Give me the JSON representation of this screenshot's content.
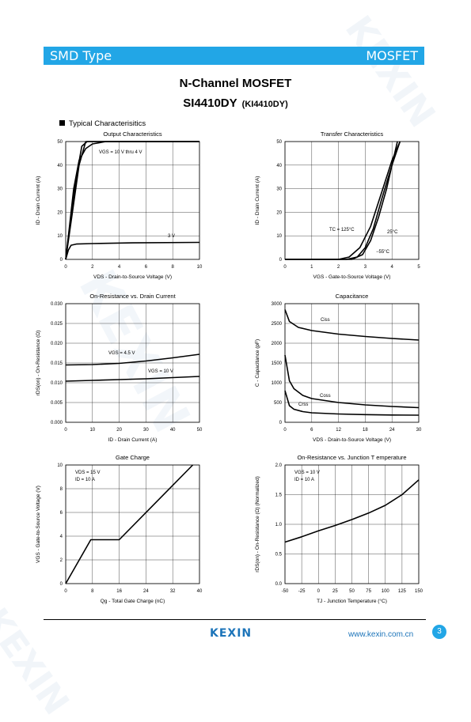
{
  "header": {
    "left": "SMD Type",
    "right": "MOSFET"
  },
  "title": {
    "line1": "N-Channel MOSFET",
    "part": "SI4410DY",
    "alt": "(KI4410DY)"
  },
  "section_label": "Typical  Characterisitics",
  "watermark": "KEXIN",
  "footer": {
    "logo": "KEXIN",
    "url": "www.kexin.com.cn",
    "page": "3"
  },
  "chart_data": [
    {
      "type": "line",
      "title": "Output  Characteristics",
      "xlabel": "VDS  -  Drain-to-Source Voltage (V)",
      "ylabel": "ID  -  Drain Current (A)",
      "xlim": [
        0,
        10
      ],
      "ylim": [
        0,
        50
      ],
      "xticks": [
        0,
        2,
        4,
        6,
        8,
        10
      ],
      "yticks": [
        0,
        10,
        20,
        30,
        40,
        50
      ],
      "series": [
        {
          "name": "VGS = 10 V thru 4 V",
          "x": [
            0,
            0.3,
            0.6,
            1.0,
            1.5,
            2.0,
            3.0,
            10
          ],
          "y": [
            0,
            15,
            30,
            42,
            47,
            49,
            50,
            50
          ]
        },
        {
          "x": [
            0,
            0.5,
            1.0,
            1.5,
            2.0,
            2.5,
            3.0,
            10
          ],
          "y": [
            0,
            20,
            40,
            50,
            50,
            50,
            50,
            50
          ]
        },
        {
          "x": [
            0,
            0.4,
            0.8,
            1.2,
            1.6,
            10
          ],
          "y": [
            0,
            18,
            35,
            48,
            50,
            50
          ]
        },
        {
          "name": "3 V",
          "x": [
            0,
            0.2,
            0.4,
            0.8,
            2,
            5,
            10
          ],
          "y": [
            0,
            4,
            6,
            6.5,
            6.7,
            7,
            7.2
          ]
        }
      ],
      "annotations": [
        "VGS = 10 V thru 4 V",
        "3 V"
      ]
    },
    {
      "type": "line",
      "title": "Transfer Characteristics",
      "xlabel": "VGS  -  Gate-to-Source Voltage (V)",
      "ylabel": "ID  -  Drain Current (A)",
      "xlim": [
        0,
        5
      ],
      "ylim": [
        0,
        50
      ],
      "xticks": [
        0,
        1,
        2,
        3,
        4,
        5
      ],
      "yticks": [
        0,
        10,
        20,
        30,
        40,
        50
      ],
      "series": [
        {
          "name": "TC = 125°C",
          "x": [
            0,
            2.0,
            2.4,
            2.8,
            3.2,
            3.6,
            4.0,
            4.3
          ],
          "y": [
            0,
            0,
            1,
            5,
            14,
            28,
            42,
            50
          ]
        },
        {
          "name": "25°C",
          "x": [
            0,
            2.3,
            2.7,
            3.0,
            3.3,
            3.6,
            4.0,
            4.3
          ],
          "y": [
            0,
            0,
            1,
            5,
            13,
            25,
            40,
            50
          ]
        },
        {
          "name": "−55°C",
          "x": [
            0,
            2.5,
            2.9,
            3.2,
            3.5,
            3.8,
            4.1,
            4.2
          ],
          "y": [
            0,
            0,
            2,
            8,
            18,
            30,
            45,
            50
          ]
        }
      ]
    },
    {
      "type": "line",
      "title": "On-Resistance vs. Drain Current",
      "xlabel": "ID  -  Drain Current (A)",
      "ylabel": "rDS(on) - On-Resistance (Ω)",
      "xlim": [
        0,
        50
      ],
      "ylim": [
        0,
        0.03
      ],
      "xticks": [
        0,
        10,
        20,
        30,
        40,
        50
      ],
      "yticks": [
        "0.000",
        "0.005",
        "0.010",
        "0.015",
        "0.020",
        "0.025",
        "0.030"
      ],
      "series": [
        {
          "name": "VGS = 4.5 V",
          "x": [
            0,
            10,
            20,
            30,
            40,
            50
          ],
          "y": [
            0.0145,
            0.0146,
            0.0149,
            0.0155,
            0.0163,
            0.0172
          ]
        },
        {
          "name": "VGS = 10 V",
          "x": [
            0,
            10,
            20,
            30,
            40,
            50
          ],
          "y": [
            0.0104,
            0.0106,
            0.0108,
            0.011,
            0.0113,
            0.0116
          ]
        }
      ]
    },
    {
      "type": "line",
      "title": "Capacitance",
      "xlabel": "VDS  -  Drain-to-Source Voltage (V)",
      "ylabel": "C  -  Capacitance (pF)",
      "xlim": [
        0,
        30
      ],
      "ylim": [
        0,
        3000
      ],
      "xticks": [
        0,
        6,
        12,
        18,
        24,
        30
      ],
      "yticks": [
        0,
        500,
        1000,
        1500,
        2000,
        2500,
        3000
      ],
      "series": [
        {
          "name": "Ciss",
          "x": [
            0,
            1,
            3,
            6,
            12,
            18,
            24,
            30
          ],
          "y": [
            2850,
            2550,
            2400,
            2320,
            2230,
            2170,
            2120,
            2080
          ]
        },
        {
          "name": "Coss",
          "x": [
            0,
            1,
            2,
            4,
            6,
            12,
            18,
            24,
            30
          ],
          "y": [
            1700,
            1050,
            850,
            680,
            600,
            500,
            440,
            400,
            370
          ]
        },
        {
          "name": "Crss",
          "x": [
            0,
            1,
            2,
            4,
            6,
            12,
            18,
            24,
            30
          ],
          "y": [
            800,
            420,
            330,
            270,
            240,
            210,
            195,
            185,
            180
          ]
        }
      ]
    },
    {
      "type": "line",
      "title": "Gate Charge",
      "xlabel": "Qg  -  Total Gate Charge (nC)",
      "ylabel": "VGS - Gate-to-Source Voltage (V)",
      "xlim": [
        0,
        40
      ],
      "ylim": [
        0,
        10
      ],
      "xticks": [
        0,
        8,
        16,
        24,
        32,
        40
      ],
      "yticks": [
        0,
        2,
        4,
        6,
        8,
        10
      ],
      "series": [
        {
          "x": [
            0,
            7.5,
            16,
            38
          ],
          "y": [
            0,
            3.7,
            3.7,
            10
          ]
        }
      ],
      "annotations": [
        "VDS = 15 V",
        "ID = 10 A"
      ]
    },
    {
      "type": "line",
      "title": "On-Resistance vs. Junction T   emperature",
      "xlabel": "TJ - Junction Temperature (°C)",
      "ylabel": "rDS(on) - On-Resistance (Ω) (Normalized)",
      "xlim": [
        -50,
        150
      ],
      "ylim": [
        0,
        2.0
      ],
      "xticks": [
        -50,
        -25,
        0,
        25,
        50,
        75,
        100,
        125,
        150
      ],
      "yticks": [
        "0.0",
        "0.5",
        "1.0",
        "1.5",
        "2.0"
      ],
      "series": [
        {
          "x": [
            -50,
            -25,
            0,
            25,
            50,
            75,
            100,
            125,
            150
          ],
          "y": [
            0.7,
            0.79,
            0.89,
            0.98,
            1.08,
            1.19,
            1.32,
            1.5,
            1.75
          ]
        }
      ],
      "annotations": [
        "VGS = 10 V",
        "ID = 10 A"
      ]
    }
  ]
}
